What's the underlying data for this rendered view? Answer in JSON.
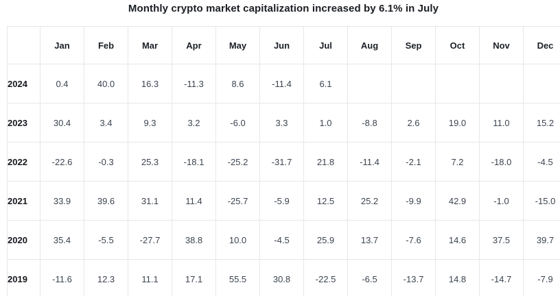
{
  "title": "Monthly crypto market capitalization increased by 6.1% in July",
  "colors": {
    "background": "#ffffff",
    "title_text": "#1a1d22",
    "header_text": "#1b1f26",
    "value_text": "#3c4450",
    "grid_line": "#e7e7e7"
  },
  "chart_data": {
    "type": "table",
    "title": "Monthly crypto market capitalization increased by 6.1% in July",
    "unit_hint": "percent change",
    "columns": [
      "Jan",
      "Feb",
      "Mar",
      "Apr",
      "May",
      "Jun",
      "Jul",
      "Aug",
      "Sep",
      "Oct",
      "Nov",
      "Dec"
    ],
    "rows": [
      {
        "year": "2024",
        "values": [
          "0.4",
          "40.0",
          "16.3",
          "-11.3",
          "8.6",
          "-11.4",
          "6.1",
          "",
          "",
          "",
          "",
          ""
        ]
      },
      {
        "year": "2023",
        "values": [
          "30.4",
          "3.4",
          "9.3",
          "3.2",
          "-6.0",
          "3.3",
          "1.0",
          "-8.8",
          "2.6",
          "19.0",
          "11.0",
          "15.2"
        ]
      },
      {
        "year": "2022",
        "values": [
          "-22.6",
          "-0.3",
          "25.3",
          "-18.1",
          "-25.2",
          "-31.7",
          "21.8",
          "-11.4",
          "-2.1",
          "7.2",
          "-18.0",
          "-4.5"
        ]
      },
      {
        "year": "2021",
        "values": [
          "33.9",
          "39.6",
          "31.1",
          "11.4",
          "-25.7",
          "-5.9",
          "12.5",
          "25.2",
          "-9.9",
          "42.9",
          "-1.0",
          "-15.0"
        ]
      },
      {
        "year": "2020",
        "values": [
          "35.4",
          "-5.5",
          "-27.7",
          "38.8",
          "10.0",
          "-4.5",
          "25.9",
          "13.7",
          "-7.6",
          "14.6",
          "37.5",
          "39.7"
        ]
      },
      {
        "year": "2019",
        "values": [
          "-11.6",
          "12.3",
          "11.1",
          "17.1",
          "55.5",
          "30.8",
          "-22.5",
          "-6.5",
          "-13.7",
          "14.8",
          "-14.7",
          "-7.9"
        ]
      }
    ]
  }
}
